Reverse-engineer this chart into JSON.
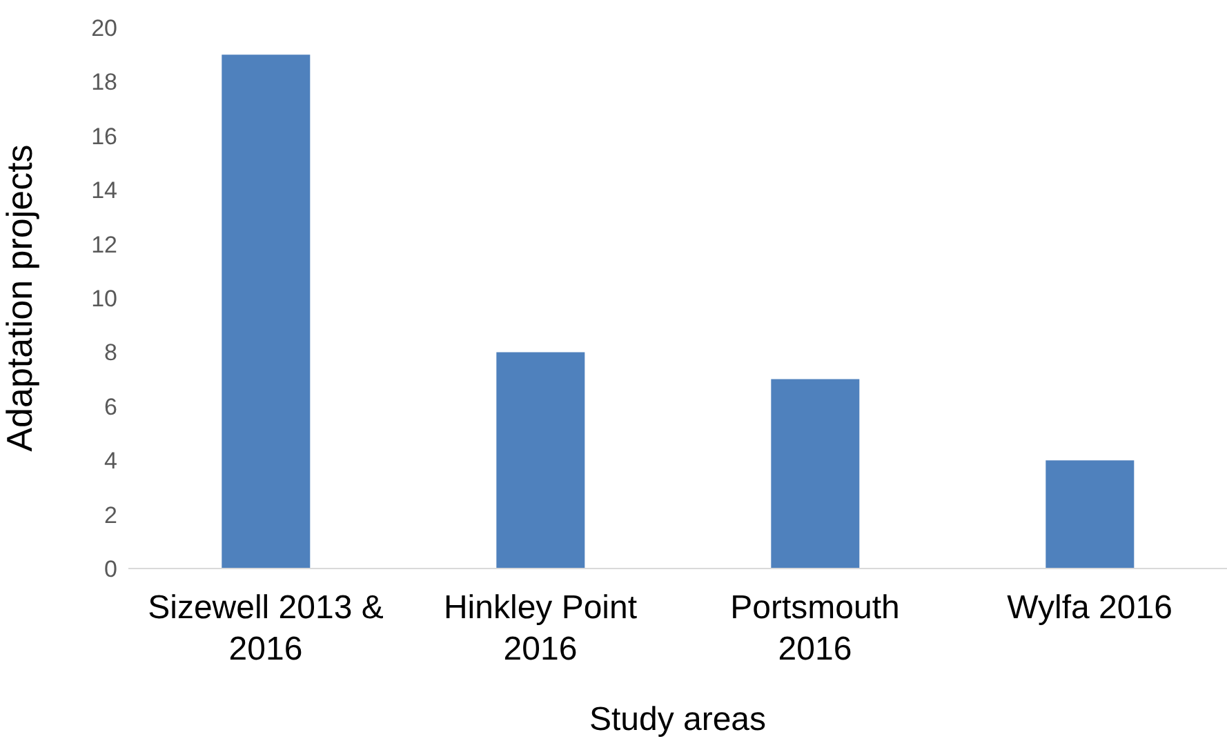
{
  "chart_data": {
    "type": "bar",
    "xlabel": "Study areas",
    "ylabel": "Adaptation projects",
    "categories": [
      "Sizewell 2013 & 2016",
      "Hinkley Point 2016",
      "Portsmouth 2016",
      "Wylfa 2016"
    ],
    "values": [
      19,
      8,
      7,
      4
    ],
    "color": "#4f81bd",
    "ylim": [
      0,
      20
    ],
    "yticks": [
      0,
      2,
      4,
      6,
      8,
      10,
      12,
      14,
      16,
      18,
      20
    ],
    "grid": false,
    "legend": false
  }
}
